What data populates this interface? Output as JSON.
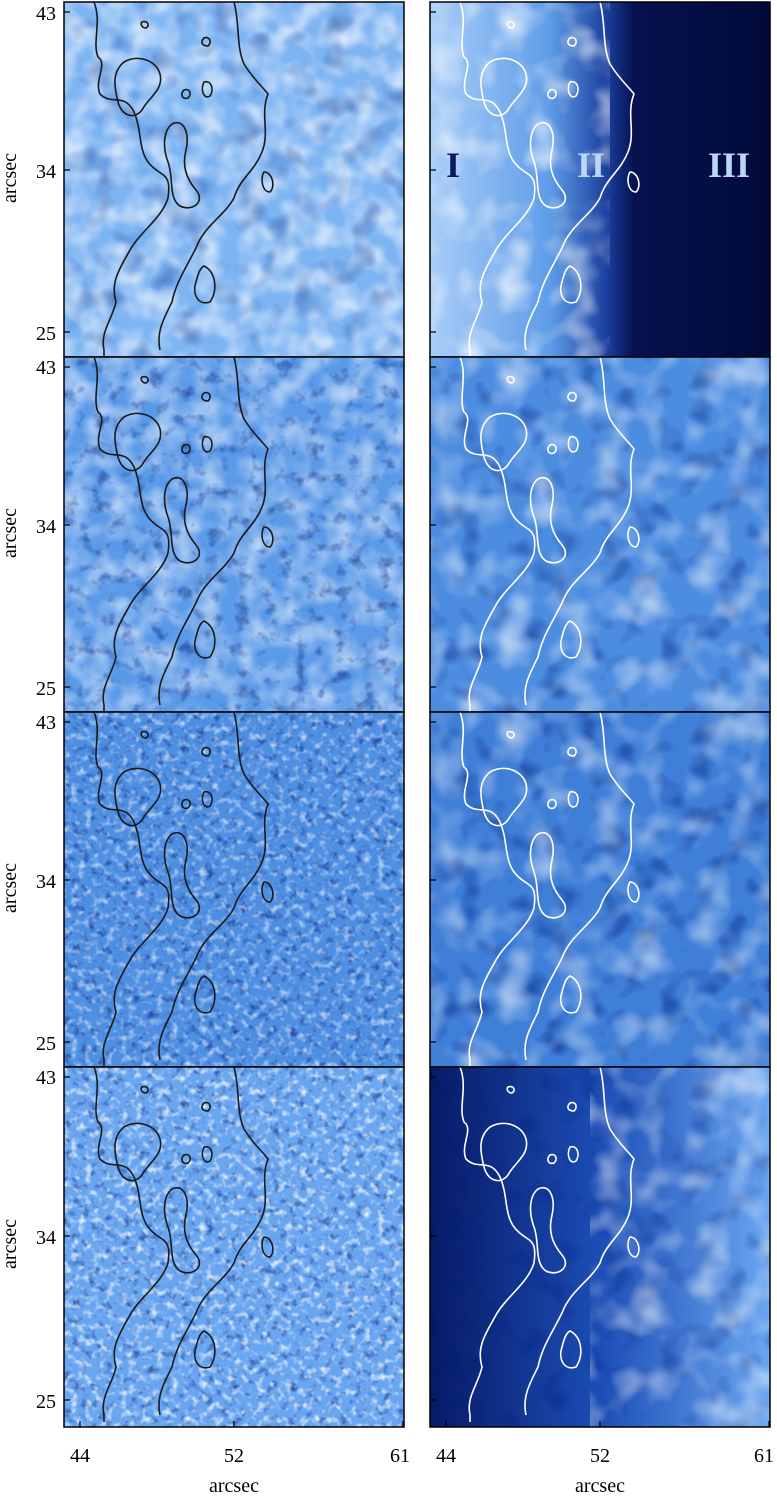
{
  "figure": {
    "y_ticks": [
      "43",
      "34",
      "25"
    ],
    "x_ticks": [
      "44",
      "52",
      "61"
    ],
    "y_axis_label": "arcsec",
    "x_axis_label": "arcsec",
    "region_labels": [
      "I",
      "II",
      "III"
    ]
  },
  "colors": {
    "light": "#f4f8ff",
    "mid": "#6aa6f0",
    "dark": "#0a1f78",
    "deep": "#020a3a",
    "contour_left": "#1a1a1a",
    "contour_right": "#ffffff",
    "region_I": "#0b1a5e",
    "region_II_III": "#bcd6f7"
  }
}
